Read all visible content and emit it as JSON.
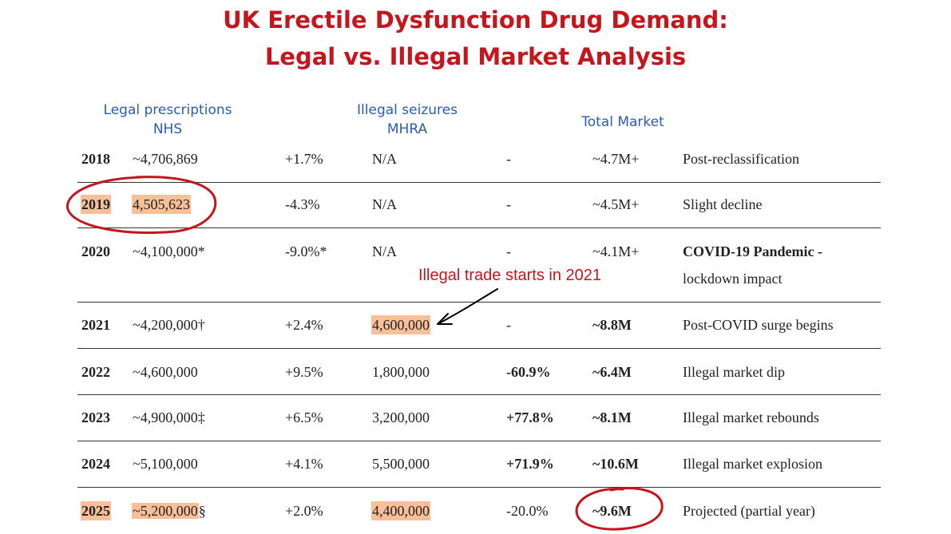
{
  "title": {
    "line1": "UK Erectile Dysfunction Drug Demand:",
    "line2": "Legal vs. Illegal Market Analysis"
  },
  "headers": {
    "legal_line1": "Legal prescriptions",
    "legal_line2": "NHS",
    "illegal_line1": "Illegal seizures",
    "illegal_line2": "MHRA",
    "total": "Total Market"
  },
  "rows": [
    {
      "year": "2018",
      "legal": "~4,706,869",
      "legal_change": "+1.7%",
      "illegal": "N/A",
      "illegal_change": "-",
      "total": "~4.7M+",
      "note": "Post-reclassification"
    },
    {
      "year": "2019",
      "legal": "4,505,623",
      "legal_change": "-4.3%",
      "illegal": "N/A",
      "illegal_change": "-",
      "total": "~4.5M+",
      "note": "Slight decline"
    },
    {
      "year": "2020",
      "legal": "~4,100,000*",
      "legal_change": "-9.0%*",
      "illegal": "N/A",
      "illegal_change": "-",
      "total": "~4.1M+",
      "note": "COVID-19 Pandemic -",
      "note2": "lockdown impact"
    },
    {
      "year": "2021",
      "legal": "~4,200,000†",
      "legal_change": "+2.4%",
      "illegal": "4,600,000",
      "illegal_change": "-",
      "total": "~8.8M",
      "note": "Post-COVID surge begins"
    },
    {
      "year": "2022",
      "legal": "~4,600,000",
      "legal_change": "+9.5%",
      "illegal": "1,800,000",
      "illegal_change": "-60.9%",
      "total": "~6.4M",
      "note": "Illegal market dip"
    },
    {
      "year": "2023",
      "legal": "~4,900,000‡",
      "legal_change": "+6.5%",
      "illegal": "3,200,000",
      "illegal_change": "+77.8%",
      "total": "~8.1M",
      "note": "Illegal market rebounds"
    },
    {
      "year": "2024",
      "legal": "~5,100,000",
      "legal_change": "+4.1%",
      "illegal": "5,500,000",
      "illegal_change": "+71.9%",
      "total": "~10.6M",
      "note": "Illegal market explosion"
    },
    {
      "year": "2025",
      "legal": "~5,200,000",
      "legal_suffix": "§",
      "legal_change": "+2.0%",
      "illegal": "4,400,000",
      "illegal_change": "-20.0%",
      "total": "~9.6M",
      "note": "Projected (partial year)"
    }
  ],
  "annotation": "Illegal trade starts in 2021",
  "colors": {
    "title": "#c4161c",
    "header": "#2a5db0",
    "highlight": "#f9bf98",
    "circle": "#c4161c"
  }
}
